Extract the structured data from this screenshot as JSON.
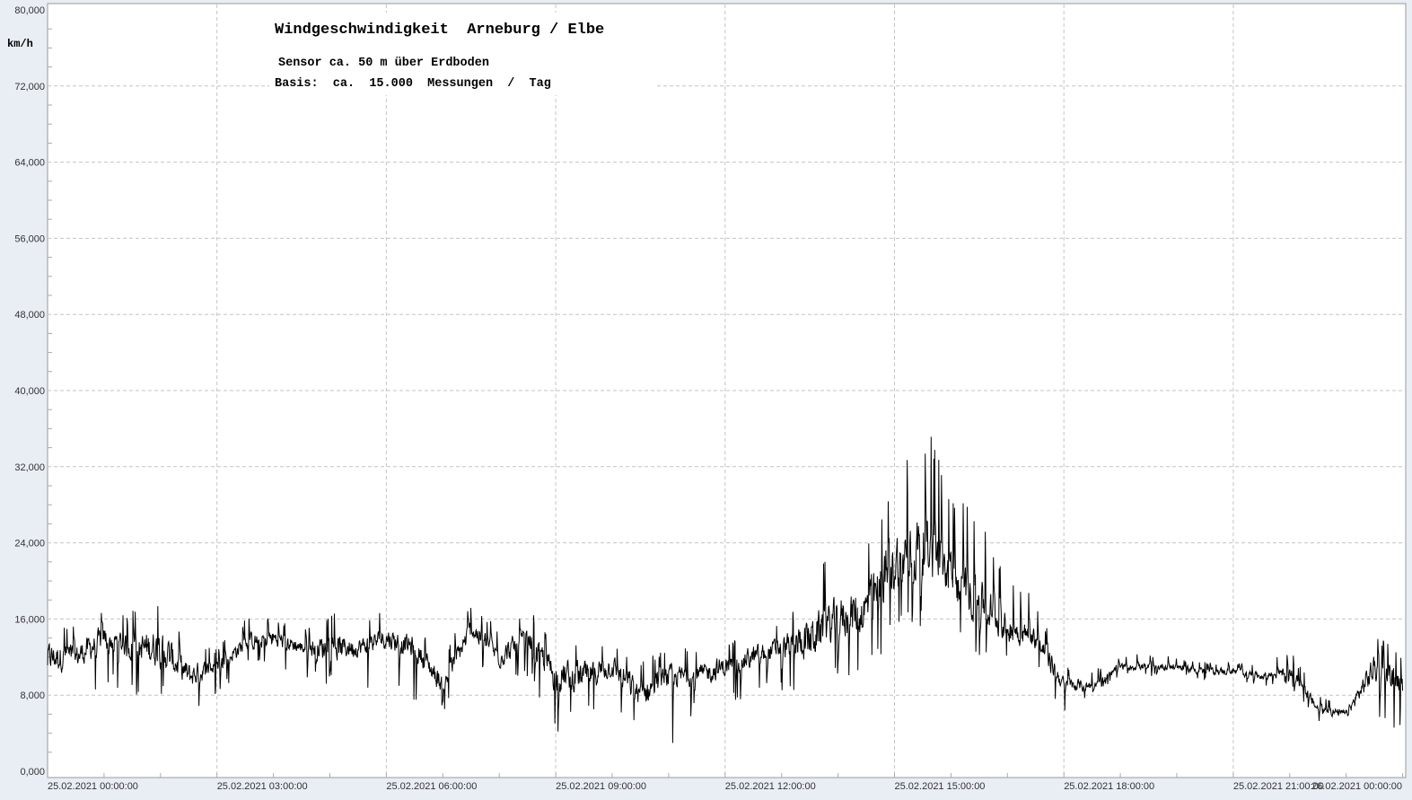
{
  "chart_data": {
    "type": "line",
    "title": "Windgeschwindigkeit  Arneburg / Elbe",
    "subtitle_lines": [
      "Sensor ca. 50 m über Erdboden",
      "Basis:  ca.  15.000  Messungen  /  Tag"
    ],
    "ylabel": "km/h",
    "xlabel": "",
    "ylim": [
      0,
      80
    ],
    "xlim_hours": [
      0,
      24.1
    ],
    "grid": true,
    "legend": "none",
    "line_color": "#000000",
    "y_ticks": [
      "0,000",
      "8,000",
      "16,000",
      "24,000",
      "32,000",
      "40,000",
      "48,000",
      "56,000",
      "64,000",
      "72,000",
      "80,000"
    ],
    "x_ticks": [
      {
        "hour": 0,
        "label": "25.02.2021  00:00:00"
      },
      {
        "hour": 3,
        "label": "25.02.2021  03:00:00"
      },
      {
        "hour": 6,
        "label": "25.02.2021  06:00:00"
      },
      {
        "hour": 9,
        "label": "25.02.2021  09:00:00"
      },
      {
        "hour": 12,
        "label": "25.02.2021  12:00:00"
      },
      {
        "hour": 15,
        "label": "25.02.2021  15:00:00"
      },
      {
        "hour": 18,
        "label": "25.02.2021  18:00:00"
      },
      {
        "hour": 21,
        "label": "25.02.2021  21:00:00"
      },
      {
        "hour": 24,
        "label": "26.02.2021  00:00:00"
      }
    ],
    "series_envelope": {
      "columns": [
        "hour",
        "mean_kmh",
        "min_kmh",
        "max_kmh"
      ],
      "rows": [
        [
          0.0,
          12,
          8,
          16
        ],
        [
          0.5,
          12,
          5.5,
          15.5
        ],
        [
          1.0,
          14,
          9,
          17.5
        ],
        [
          1.5,
          13,
          8,
          17
        ],
        [
          2.0,
          13,
          8,
          18
        ],
        [
          2.5,
          10,
          6,
          13.5
        ],
        [
          3.0,
          11,
          8,
          13
        ],
        [
          3.5,
          13.5,
          11,
          16
        ],
        [
          4.0,
          14,
          11,
          16.5
        ],
        [
          4.5,
          13,
          10,
          15
        ],
        [
          5.0,
          13,
          9,
          17
        ],
        [
          5.5,
          13,
          8,
          15.5
        ],
        [
          6.0,
          14,
          9,
          17
        ],
        [
          6.5,
          13,
          6,
          16
        ],
        [
          7.0,
          9,
          6,
          12
        ],
        [
          7.5,
          15,
          12,
          18
        ],
        [
          8.0,
          12,
          9,
          15
        ],
        [
          8.5,
          14,
          10,
          17
        ],
        [
          9.0,
          10,
          4,
          14.5
        ],
        [
          9.5,
          10,
          6,
          14
        ],
        [
          10.0,
          11,
          6,
          14
        ],
        [
          10.5,
          8,
          5,
          12
        ],
        [
          11.0,
          10,
          1,
          13
        ],
        [
          11.5,
          10,
          7,
          13
        ],
        [
          12.0,
          11,
          7,
          14
        ],
        [
          12.5,
          12,
          8,
          15
        ],
        [
          13.0,
          13,
          8,
          16
        ],
        [
          13.5,
          14,
          8,
          20
        ],
        [
          14.0,
          16,
          10,
          25
        ],
        [
          14.5,
          17,
          10,
          24
        ],
        [
          15.0,
          22,
          14,
          31
        ],
        [
          15.5,
          24,
          15,
          37.5
        ],
        [
          16.0,
          20,
          13,
          30
        ],
        [
          16.5,
          18,
          12,
          27
        ],
        [
          17.0,
          15,
          11,
          21
        ],
        [
          17.5,
          14,
          11,
          18
        ],
        [
          18.0,
          9,
          6,
          11
        ],
        [
          18.5,
          9,
          8,
          10.5
        ],
        [
          19.0,
          11,
          10,
          12
        ],
        [
          19.5,
          11,
          10,
          12.5
        ],
        [
          20.0,
          11,
          10,
          12
        ],
        [
          20.5,
          10.5,
          9.5,
          11.5
        ],
        [
          21.0,
          10.5,
          9.5,
          11.5
        ],
        [
          21.5,
          10,
          9,
          11
        ],
        [
          22.0,
          10.5,
          9,
          13
        ],
        [
          22.5,
          6.5,
          5,
          8
        ],
        [
          23.0,
          6,
          4.5,
          7
        ],
        [
          23.5,
          11,
          5,
          15
        ],
        [
          24.0,
          9,
          4,
          12
        ]
      ]
    }
  }
}
